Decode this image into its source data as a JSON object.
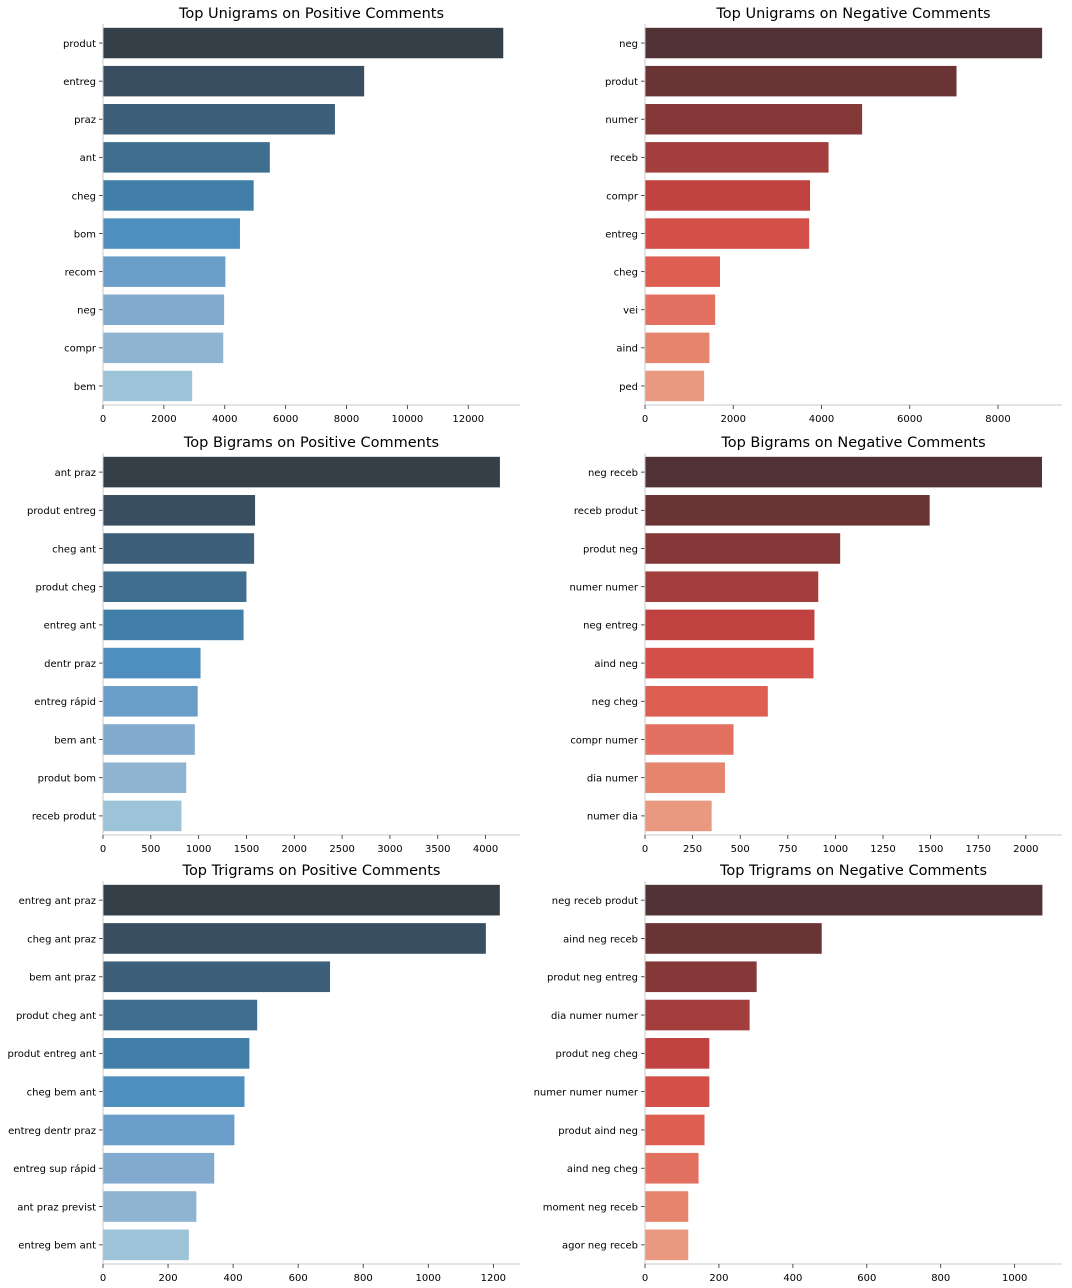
{
  "colors": {
    "positive": [
      "#343f48",
      "#394e61",
      "#3d5f79",
      "#3f6e8f",
      "#427fa8",
      "#4f8fc0",
      "#6a9ec8",
      "#82aace",
      "#8fb4d2",
      "#9dc3d9"
    ],
    "negative": [
      "#513235",
      "#6b3434",
      "#853838",
      "#a23e3b",
      "#bf4240",
      "#d25048",
      "#dc5f52",
      "#e27162",
      "#e5856e",
      "#e9997f"
    ]
  },
  "chart_data": [
    {
      "type": "bar",
      "orientation": "horizontal",
      "palette": "positive",
      "title": "Top Unigrams on Positive Comments",
      "categories": [
        "produt",
        "entreg",
        "praz",
        "ant",
        "cheg",
        "bom",
        "recom",
        "neg",
        "compr",
        "bem"
      ],
      "values": [
        13150,
        8580,
        7620,
        5480,
        4950,
        4500,
        4020,
        3980,
        3950,
        2930
      ],
      "xlim": [
        0,
        13700
      ],
      "xticks": [
        0,
        2000,
        4000,
        6000,
        8000,
        10000,
        12000
      ]
    },
    {
      "type": "bar",
      "orientation": "horizontal",
      "palette": "negative",
      "title": "Top Unigrams on Negative Comments",
      "categories": [
        "neg",
        "produt",
        "numer",
        "receb",
        "compr",
        "entreg",
        "cheg",
        "vei",
        "aind",
        "ped"
      ],
      "values": [
        9000,
        7060,
        4920,
        4160,
        3740,
        3720,
        1700,
        1590,
        1460,
        1340
      ],
      "xlim": [
        0,
        9450
      ],
      "xticks": [
        0,
        2000,
        4000,
        6000,
        8000
      ]
    },
    {
      "type": "bar",
      "orientation": "horizontal",
      "palette": "positive",
      "title": "Top Bigrams on Positive Comments",
      "categories": [
        "ant praz",
        "produt entreg",
        "cheg ant",
        "produt cheg",
        "entreg ant",
        "dentr praz",
        "entreg rápid",
        "bem ant",
        "produt bom",
        "receb produt"
      ],
      "values": [
        4150,
        1590,
        1580,
        1500,
        1470,
        1020,
        990,
        960,
        870,
        820
      ],
      "xlim": [
        0,
        4360
      ],
      "xticks": [
        0,
        500,
        1000,
        1500,
        2000,
        2500,
        3000,
        3500,
        4000
      ]
    },
    {
      "type": "bar",
      "orientation": "horizontal",
      "palette": "negative",
      "title": "Top Bigrams on Negative Comments",
      "categories": [
        "neg receb",
        "receb produt",
        "produt neg",
        "numer numer",
        "neg entreg",
        "aind neg",
        "neg cheg",
        "compr numer",
        "dia numer",
        "numer dia"
      ],
      "values": [
        2085,
        1495,
        1025,
        910,
        890,
        885,
        645,
        465,
        420,
        350
      ],
      "xlim": [
        0,
        2190
      ],
      "xticks": [
        0,
        250,
        500,
        750,
        1000,
        1250,
        1500,
        1750,
        2000
      ]
    },
    {
      "type": "bar",
      "orientation": "horizontal",
      "palette": "positive",
      "title": "Top Trigrams on Positive Comments",
      "categories": [
        "entreg ant praz",
        "cheg ant praz",
        "bem ant praz",
        "produt cheg ant",
        "produt entreg ant",
        "cheg bem ant",
        "entreg dentr praz",
        "entreg sup rápid",
        "ant praz previst",
        "entreg bem ant"
      ],
      "values": [
        1220,
        1177,
        698,
        474,
        450,
        435,
        404,
        342,
        287,
        264
      ],
      "xlim": [
        0,
        1282
      ],
      "xticks": [
        0,
        200,
        400,
        600,
        800,
        1000,
        1200
      ]
    },
    {
      "type": "bar",
      "orientation": "horizontal",
      "palette": "negative",
      "title": "Top Trigrams on Negative Comments",
      "categories": [
        "neg receb produt",
        "aind neg receb",
        "produt neg entreg",
        "dia numer numer",
        "produt neg cheg",
        "numer numer numer",
        "produt aind neg",
        "aind neg cheg",
        "moment neg receb",
        "agor neg receb"
      ],
      "values": [
        1075,
        478,
        302,
        283,
        174,
        174,
        161,
        145,
        117,
        117
      ],
      "xlim": [
        0,
        1128
      ],
      "xticks": [
        0,
        200,
        400,
        600,
        800,
        1000
      ]
    }
  ]
}
